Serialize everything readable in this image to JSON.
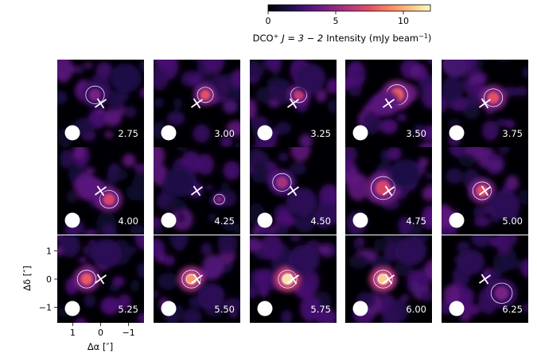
{
  "chart_data": {
    "type": "heatmap",
    "layout": "channel-map grid, 3 rows x 5 columns",
    "colorbar": {
      "label_species": "DCO",
      "label_ion": "+",
      "label_transition": "J = 3 − 2",
      "label_quantity": "Intensity (mJy beam",
      "label_exp": "−1",
      "label_close": ")",
      "range": [
        0,
        12
      ],
      "ticks": [
        0,
        5,
        10
      ],
      "tick_labels": [
        "0",
        "5",
        "10"
      ],
      "colormap": "magma"
    },
    "xlabel": "Δα [″]",
    "ylabel": "Δδ [″]",
    "x_ticks": [
      1,
      0,
      -1
    ],
    "x_tick_labels": [
      "1",
      "0",
      "−1"
    ],
    "y_ticks": [
      1,
      0,
      -1
    ],
    "y_tick_labels": [
      "1",
      "0",
      "−1"
    ],
    "xlim": [
      1.55,
      -1.55
    ],
    "ylim": [
      -1.55,
      1.55
    ],
    "beam": "white filled ellipse, lower-left of each panel",
    "center_marker": "white cross at (0, 0)",
    "panels": [
      {
        "label": "2.75",
        "row": 0,
        "col": 0,
        "peak": 4.5
      },
      {
        "label": "3.00",
        "row": 0,
        "col": 1,
        "peak": 7.5
      },
      {
        "label": "3.25",
        "row": 0,
        "col": 2,
        "peak": 6.5
      },
      {
        "label": "3.50",
        "row": 0,
        "col": 3,
        "peak": 8.0
      },
      {
        "label": "3.75",
        "row": 0,
        "col": 4,
        "peak": 7.5
      },
      {
        "label": "4.00",
        "row": 1,
        "col": 0,
        "peak": 7.0
      },
      {
        "label": "4.25",
        "row": 1,
        "col": 1,
        "peak": 4.5
      },
      {
        "label": "4.50",
        "row": 1,
        "col": 2,
        "peak": 5.5
      },
      {
        "label": "4.75",
        "row": 1,
        "col": 3,
        "peak": 7.0
      },
      {
        "label": "5.00",
        "row": 1,
        "col": 4,
        "peak": 7.5
      },
      {
        "label": "5.25",
        "row": 2,
        "col": 0,
        "peak": 8.0
      },
      {
        "label": "5.50",
        "row": 2,
        "col": 1,
        "peak": 9.5
      },
      {
        "label": "5.75",
        "row": 2,
        "col": 2,
        "peak": 11.5
      },
      {
        "label": "6.00",
        "row": 2,
        "col": 3,
        "peak": 11.0
      },
      {
        "label": "6.25",
        "row": 2,
        "col": 4,
        "peak": 5.0
      }
    ]
  }
}
